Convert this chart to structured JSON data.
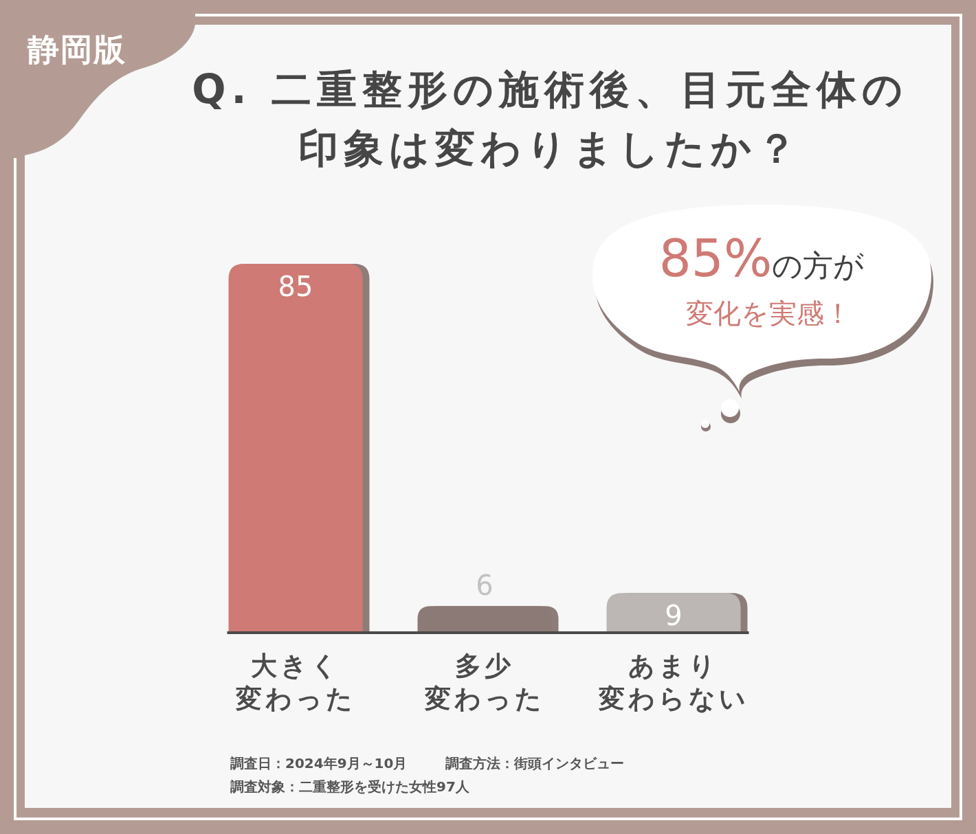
{
  "chart_data": {
    "type": "bar",
    "title": "Q. 二重整形の施術後、目元全体の印象は変わりましたか？",
    "subtitle": "静岡版",
    "categories": [
      "大きく変わった",
      "多少変わった",
      "あまり変わらない"
    ],
    "values": [
      85,
      6,
      9
    ],
    "colors": [
      "#cf7a74",
      "#8c7a77",
      "#bcb7b5"
    ],
    "data_labels": true,
    "annotations": [
      "85%の方が",
      "変化を実感！",
      "調査日：2024年9月～10月",
      "調査方法：街頭インタビュー",
      "調査対象：二重整形を受けた女性97人"
    ]
  }
}
